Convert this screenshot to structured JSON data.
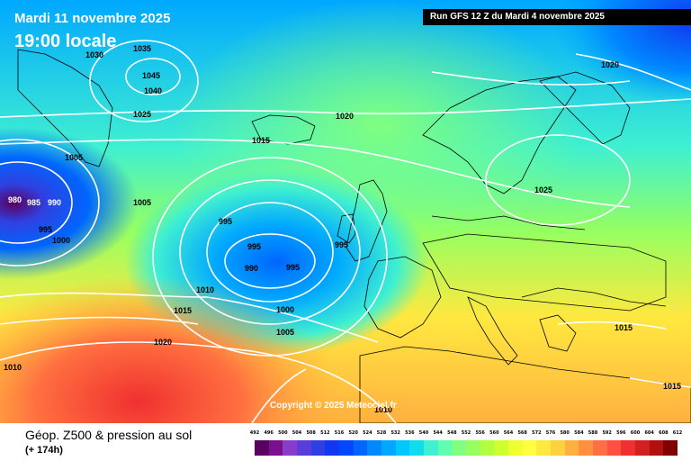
{
  "header": {
    "date_title": "Mardi 11 novembre 2025",
    "time_title": "19:00 locale",
    "run_info": "Run GFS 12 Z du Mardi 4 novembre 2025"
  },
  "footer": {
    "product_title": "Géop. Z500 & pression au sol",
    "lead_time": "(+ 174h)",
    "copyright": "Copyright © 2025 Meteociel.fr"
  },
  "isobar_labels": [
    "1030",
    "1035",
    "1045",
    "1040",
    "1025",
    "1005",
    "980",
    "985",
    "990",
    "995",
    "1000",
    "1005",
    "995",
    "995",
    "990",
    "995",
    "995",
    "1010",
    "1015",
    "1000",
    "1005",
    "1020",
    "1010",
    "1015",
    "1020",
    "1025",
    "1020",
    "1015",
    "1015",
    "1010"
  ],
  "scale": {
    "labels": [
      "492",
      "496",
      "500",
      "504",
      "508",
      "512",
      "516",
      "520",
      "524",
      "528",
      "532",
      "536",
      "540",
      "544",
      "548",
      "552",
      "556",
      "560",
      "564",
      "568",
      "572",
      "576",
      "580",
      "584",
      "588",
      "592",
      "596",
      "600",
      "604",
      "608",
      "612"
    ],
    "colors": [
      "#5a0060",
      "#7a1090",
      "#8a3cc8",
      "#5a3cd8",
      "#3040e0",
      "#1038f0",
      "#0048ff",
      "#0066ff",
      "#0088ff",
      "#00a8ff",
      "#00c8ff",
      "#10dcf0",
      "#40f0d0",
      "#60ffb0",
      "#80ff80",
      "#98ff60",
      "#b0ff40",
      "#d0ff30",
      "#f0ff30",
      "#ffff40",
      "#ffe840",
      "#ffd040",
      "#ffb040",
      "#ff9040",
      "#ff7040",
      "#ff5040",
      "#f03030",
      "#d02020",
      "#b01010",
      "#800000"
    ]
  }
}
